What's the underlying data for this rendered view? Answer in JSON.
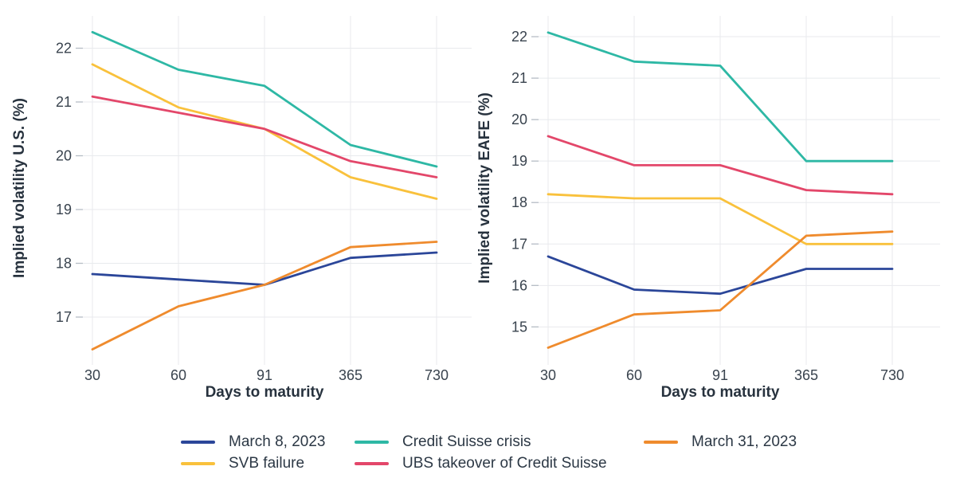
{
  "figure": {
    "background": "#ffffff",
    "grid_color": "#e8eaed",
    "tick_mark_color": "#b6bdc5",
    "tick_label_color": "#39434e",
    "axis_title_color": "#27323e"
  },
  "chart_data": [
    {
      "type": "line",
      "title": "",
      "xlabel": "Days to maturity",
      "ylabel": "Implied volatility U.S. (%)",
      "categories": [
        "30",
        "60",
        "91",
        "365",
        "730"
      ],
      "yticks": [
        17,
        18,
        19,
        20,
        21,
        22
      ],
      "ylim": [
        16.2,
        22.6
      ],
      "grid": true,
      "legend_position": "bottom",
      "series": [
        {
          "name": "March 8, 2023",
          "color": "#2b4699",
          "values": [
            17.8,
            17.7,
            17.6,
            18.1,
            18.2
          ]
        },
        {
          "name": "SVB failure",
          "color": "#f9c13c",
          "values": [
            21.7,
            20.9,
            20.5,
            19.6,
            19.2
          ]
        },
        {
          "name": "Credit Suisse crisis",
          "color": "#2eb8a5",
          "values": [
            22.3,
            21.6,
            21.3,
            20.2,
            19.8
          ]
        },
        {
          "name": "UBS takeover of Credit Suisse",
          "color": "#e3476a",
          "values": [
            21.1,
            20.8,
            20.5,
            19.9,
            19.6
          ]
        },
        {
          "name": "March 31, 2023",
          "color": "#ef8b2d",
          "values": [
            16.4,
            17.2,
            17.6,
            18.3,
            18.4
          ]
        }
      ]
    },
    {
      "type": "line",
      "title": "",
      "xlabel": "Days to maturity",
      "ylabel": "Implied volatility EAFE (%)",
      "categories": [
        "30",
        "60",
        "91",
        "365",
        "730"
      ],
      "yticks": [
        15,
        16,
        17,
        18,
        19,
        20,
        21,
        22
      ],
      "ylim": [
        14.2,
        22.5
      ],
      "grid": true,
      "legend_position": "bottom",
      "series": [
        {
          "name": "March 8, 2023",
          "color": "#2b4699",
          "values": [
            16.7,
            15.9,
            15.8,
            16.4,
            16.4
          ]
        },
        {
          "name": "SVB failure",
          "color": "#f9c13c",
          "values": [
            18.2,
            18.1,
            18.1,
            17.0,
            17.0
          ]
        },
        {
          "name": "Credit Suisse crisis",
          "color": "#2eb8a5",
          "values": [
            22.1,
            21.4,
            21.3,
            19.0,
            19.0
          ]
        },
        {
          "name": "UBS takeover of Credit Suisse",
          "color": "#e3476a",
          "values": [
            19.6,
            18.9,
            18.9,
            18.3,
            18.2
          ]
        },
        {
          "name": "March 31, 2023",
          "color": "#ef8b2d",
          "values": [
            14.5,
            15.3,
            15.4,
            17.2,
            17.3
          ]
        }
      ]
    }
  ],
  "legend": {
    "columns": [
      {
        "x": 227,
        "items": [
          {
            "label": "March 8, 2023",
            "color": "#2b4699"
          },
          {
            "label": "SVB failure",
            "color": "#f9c13c"
          }
        ]
      },
      {
        "x": 445,
        "items": [
          {
            "label": "Credit Suisse crisis",
            "color": "#2eb8a5"
          },
          {
            "label": "UBS takeover of Credit Suisse",
            "color": "#e3476a"
          }
        ]
      },
      {
        "x": 808,
        "items": [
          {
            "label": "March 31, 2023",
            "color": "#ef8b2d"
          }
        ]
      }
    ]
  }
}
